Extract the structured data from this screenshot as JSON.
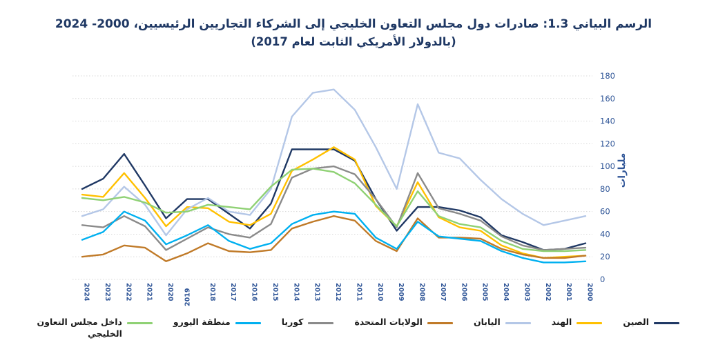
{
  "title": {
    "line1": "الرسم البياني 1.3: صادرات دول مجلس التعاون الخليجي إلى الشركاء التجاريين الرئيسيين، 2000- 2024",
    "line2": "(بالدولار الأمريكي الثابت لعام 2017)"
  },
  "colors": {
    "title": "#1F3864",
    "axis_text": "#2F5597",
    "gridline": "#D8D8D8",
    "background": "#FFFFFF"
  },
  "y_axis": {
    "title": "مليارات",
    "ticks": [
      "0",
      "20",
      "40",
      "60",
      "80",
      "100",
      "120",
      "140",
      "160",
      "180"
    ],
    "min": 0,
    "max": 180
  },
  "x_axis": {
    "flipped_year": "2019"
  },
  "chart_data": {
    "type": "line",
    "title": "الرسم البياني 1.3: صادرات دول مجلس التعاون الخليجي إلى الشركاء التجاريين الرئيسيين، 2000- 2024 (بالدولار الأمريكي الثابت لعام 2017)",
    "xlabel": "",
    "ylabel": "مليارات",
    "ylim": [
      0,
      180
    ],
    "grid": true,
    "legend_position": "bottom",
    "x_note": "x axis runs right-to-left style: 2024 at left edge, 2000 at right edge",
    "x": [
      "2024",
      "2023",
      "2022",
      "2021",
      "2020",
      "2019",
      "2018",
      "2017",
      "2016",
      "2015",
      "2014",
      "2013",
      "2012",
      "2011",
      "2010",
      "2009",
      "2008",
      "2007",
      "2006",
      "2005",
      "2004",
      "2003",
      "2002",
      "2001",
      "2000"
    ],
    "series": [
      {
        "key": "china",
        "name": "الصين",
        "color": "#1F3864",
        "values": [
          80,
          89,
          111,
          83,
          54,
          71,
          71,
          58,
          45,
          67,
          115,
          115,
          115,
          105,
          71,
          43,
          64,
          64,
          61,
          55,
          39,
          33,
          26,
          27,
          32
        ]
      },
      {
        "key": "india",
        "name": "الهند",
        "color": "#FFC000",
        "values": [
          75,
          73,
          94,
          72,
          47,
          64,
          63,
          51,
          48,
          58,
          96,
          106,
          117,
          106,
          65,
          47,
          86,
          55,
          46,
          43,
          30,
          23,
          19,
          20,
          21
        ]
      },
      {
        "key": "japan",
        "name": "اليابان",
        "color": "#B4C7E7",
        "values": [
          56,
          62,
          82,
          66,
          39,
          62,
          72,
          60,
          57,
          80,
          144,
          165,
          168,
          150,
          117,
          80,
          155,
          112,
          107,
          88,
          71,
          58,
          48,
          52,
          56
        ]
      },
      {
        "key": "united-states",
        "name": "الولايات المتحدة",
        "color": "#C07A28",
        "values": [
          20,
          22,
          30,
          28,
          16,
          23,
          32,
          25,
          24,
          26,
          45,
          51,
          56,
          52,
          34,
          25,
          54,
          37,
          37,
          36,
          27,
          22,
          19,
          19,
          21
        ]
      },
      {
        "key": "korea",
        "name": "كوريا",
        "color": "#8A8A8A",
        "values": [
          48,
          46,
          56,
          47,
          26,
          36,
          46,
          40,
          37,
          49,
          90,
          98,
          100,
          93,
          71,
          46,
          94,
          63,
          58,
          52,
          38,
          30,
          26,
          27,
          28
        ]
      },
      {
        "key": "euro-area",
        "name": "منطقة اليورو",
        "color": "#00B0F0",
        "values": [
          35,
          42,
          60,
          52,
          31,
          39,
          48,
          34,
          27,
          32,
          49,
          57,
          60,
          58,
          37,
          27,
          51,
          38,
          36,
          34,
          25,
          19,
          15,
          15,
          16
        ]
      },
      {
        "key": "intra-gcc",
        "name": "داخل مجلس التعاون الخليجي",
        "color": "#8FD174",
        "values": [
          72,
          70,
          73,
          68,
          59,
          60,
          66,
          64,
          62,
          82,
          97,
          98,
          95,
          85,
          66,
          47,
          78,
          56,
          49,
          46,
          34,
          27,
          25,
          25,
          26
        ]
      }
    ]
  }
}
